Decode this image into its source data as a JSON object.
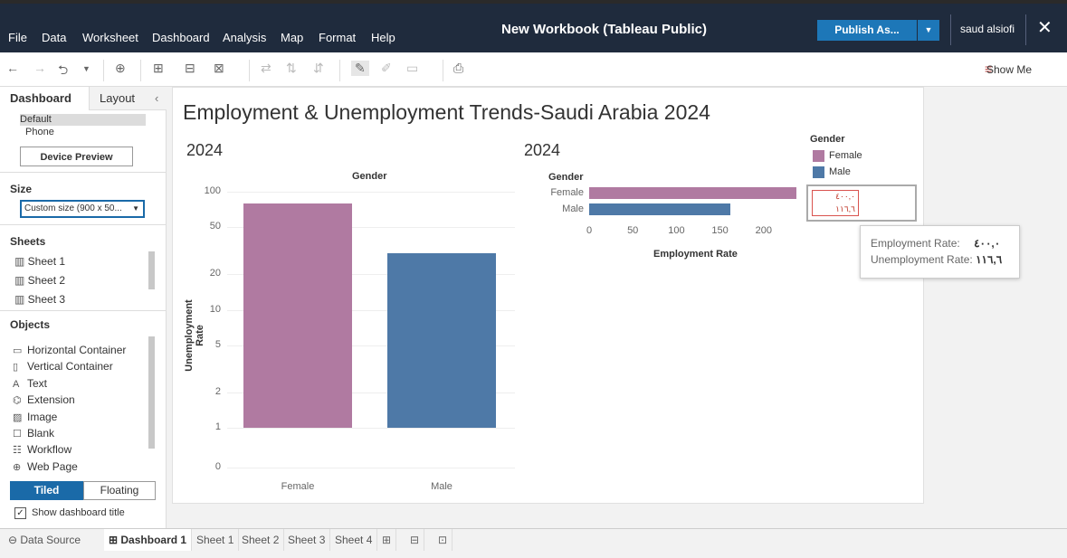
{
  "menu": {
    "items": [
      "File",
      "Data",
      "Worksheet",
      "Dashboard",
      "Analysis",
      "Map",
      "Format",
      "Help"
    ],
    "title": "New Workbook (Tableau Public)",
    "publish_label": "Publish As...",
    "user_name": "saud alsiofi"
  },
  "toolbar": {
    "show_me_label": "Show Me"
  },
  "left_panel": {
    "tab_dashboard": "Dashboard",
    "tab_layout": "Layout",
    "device_default": "Default",
    "device_phone": "Phone",
    "device_preview_label": "Device Preview",
    "size_header": "Size",
    "size_value": "Custom size (900 x 50...",
    "sheets_header": "Sheets",
    "sheets": [
      "Sheet 1",
      "Sheet 2",
      "Sheet 3"
    ],
    "objects_header": "Objects",
    "objects": [
      {
        "label": "Horizontal Container",
        "icon": "horizontal-container-icon"
      },
      {
        "label": "Vertical Container",
        "icon": "vertical-container-icon"
      },
      {
        "label": "Text",
        "icon": "text-icon"
      },
      {
        "label": "Extension",
        "icon": "extension-icon"
      },
      {
        "label": "Image",
        "icon": "image-icon"
      },
      {
        "label": "Blank",
        "icon": "blank-icon"
      },
      {
        "label": "Workflow",
        "icon": "workflow-icon"
      },
      {
        "label": "Web Page",
        "icon": "web-page-icon"
      }
    ],
    "tiled_label": "Tiled",
    "floating_label": "Floating",
    "show_title_label": "Show dashboard title"
  },
  "dashboard": {
    "title": "Employment & Unemployment Trends-Saudi Arabia 2024",
    "year_left": "2024",
    "year_right": "2024",
    "legend": {
      "title": "Gender",
      "items": [
        {
          "label": "Female",
          "color": "#b07aa1"
        },
        {
          "label": "Male",
          "color": "#4e79a7"
        }
      ],
      "filter_values": [
        "٤٠٠,٠",
        "١١٦,٦"
      ]
    },
    "tooltip": {
      "line1_label": "Employment Rate:",
      "line1_value": "٤٠٠,٠",
      "line2_label": "Unemployment Rate:",
      "line2_value": "١١٦,٦"
    }
  },
  "chart_data": [
    {
      "type": "bar",
      "header": "Gender",
      "categories": [
        "Female",
        "Male"
      ],
      "values": [
        80,
        30
      ],
      "ylabel": "Unemployment Rate",
      "yscale": "log",
      "yticks": [
        "100",
        "50",
        "20",
        "10",
        "5",
        "2",
        "1",
        "0"
      ],
      "colors": [
        "#b07aa1",
        "#4e79a7"
      ]
    },
    {
      "type": "bar",
      "orientation": "horizontal",
      "header": "Gender",
      "categories": [
        "Female",
        "Male"
      ],
      "values": [
        240,
        162
      ],
      "xlabel": "Employment Rate",
      "xticks": [
        "0",
        "50",
        "100",
        "150",
        "200"
      ],
      "xlim": [
        0,
        230
      ],
      "colors": [
        "#b07aa1",
        "#4e79a7"
      ]
    }
  ],
  "bottom_tabs": {
    "data_source": "Data Source",
    "tabs": [
      "Dashboard 1",
      "Sheet 1",
      "Sheet 2",
      "Sheet 3",
      "Sheet 4"
    ]
  }
}
